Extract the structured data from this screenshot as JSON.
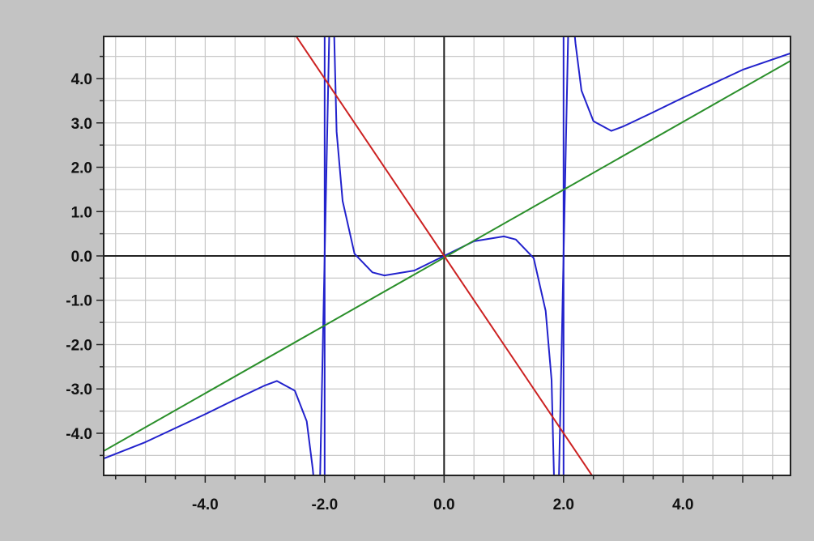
{
  "chart_data": {
    "type": "line",
    "title": "",
    "xlabel": "",
    "ylabel": "",
    "xlim": [
      -5.7,
      5.8
    ],
    "ylim": [
      -4.95,
      4.95
    ],
    "x_ticks": [
      -4,
      -2,
      0,
      2,
      4
    ],
    "x_tick_labels": [
      "-4.0",
      "-2.0",
      "0.0",
      "2.0",
      "4.0"
    ],
    "y_ticks": [
      4,
      3,
      2,
      1,
      0,
      -1,
      -2,
      -3,
      -4
    ],
    "y_tick_labels": [
      "4.0",
      "3.0",
      "2.0",
      "1.0",
      "0.0",
      "-1.0",
      "-2.0",
      "-3.0",
      "-4.0"
    ],
    "grid": true,
    "series": [
      {
        "color": "#2222cc",
        "x": [
          -5.7,
          -5,
          -4,
          -3.5,
          -3,
          -2.8,
          -2.5,
          -2.3,
          -2.2,
          -2.15,
          -2.1,
          -1.9,
          -1.85,
          -1.8,
          -1.7,
          -1.5,
          -1.2,
          -1,
          -0.5,
          0,
          0.5,
          1,
          1.2,
          1.5,
          1.7,
          1.8,
          1.85,
          1.9,
          2.1,
          2.15,
          2.2,
          2.3,
          2.5,
          2.8,
          3,
          3.5,
          4,
          5,
          5.8
        ],
        "y": [
          -4.57,
          -4.2,
          -3.57,
          -3.24,
          -2.92,
          -2.82,
          -3.04,
          -3.73,
          -4.8,
          -5.5,
          -6.5,
          6.5,
          5.5,
          2.8,
          1.24,
          0.05,
          -0.37,
          -0.44,
          -0.33,
          0,
          0.33,
          0.44,
          0.37,
          -0.05,
          -1.24,
          -2.8,
          -5.5,
          -6.5,
          6.5,
          5.5,
          4.8,
          3.73,
          3.04,
          2.82,
          2.92,
          3.24,
          3.57,
          4.2,
          4.57
        ]
      },
      {
        "color": "#2a8f2a",
        "x": [
          -5.7,
          5.8
        ],
        "y": [
          -4.4,
          4.4
        ]
      },
      {
        "color": "#cc2222",
        "x": [
          -2.5,
          2.5
        ],
        "y": [
          5,
          -5
        ]
      }
    ],
    "vertical_lines": [
      {
        "x": -2,
        "color": "#2222cc"
      },
      {
        "x": 2,
        "color": "#2222cc"
      }
    ]
  }
}
